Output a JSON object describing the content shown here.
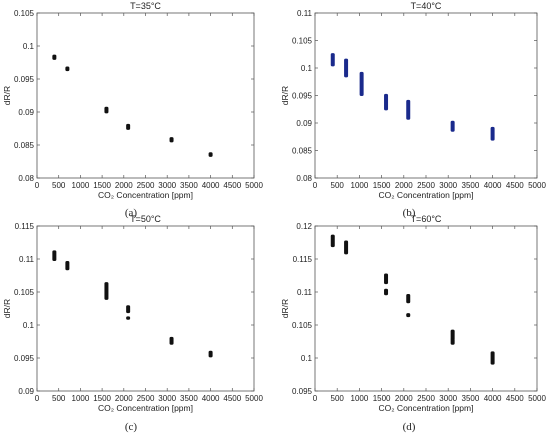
{
  "chart_data": [
    {
      "type": "scatter",
      "title": "T=35°C",
      "panel_label": "(a)",
      "xlabel": "CO₂ Concentration [ppm]",
      "ylabel": "dR/R",
      "xlim": [
        0,
        5000
      ],
      "ylim": [
        0.08,
        0.105
      ],
      "xticks": [
        "0",
        "500",
        "1000",
        "1500",
        "2000",
        "2500",
        "3000",
        "3500",
        "4000",
        "4500",
        "5000"
      ],
      "yticks": [
        "0.08",
        "0.085",
        "0.09",
        "0.095",
        "0.1",
        "0.105"
      ],
      "marker_color": "#111111",
      "series": [
        {
          "x": [
            400,
            700,
            1600,
            2100,
            3100,
            4000
          ],
          "y_high": [
            0.0987,
            0.0969,
            0.0908,
            0.0882,
            0.0862,
            0.0839
          ],
          "y_low": [
            0.0979,
            0.0962,
            0.0898,
            0.0873,
            0.0854,
            0.0832
          ]
        }
      ]
    },
    {
      "type": "scatter",
      "title": "T=40°C",
      "panel_label": "(b)",
      "xlabel": "CO₂ Concentration [ppm]",
      "ylabel": "dR/R",
      "xlim": [
        0,
        5000
      ],
      "ylim": [
        0.08,
        0.11
      ],
      "xticks": [
        "0",
        "500",
        "1000",
        "1500",
        "2000",
        "2500",
        "3000",
        "3500",
        "4000",
        "4500",
        "5000"
      ],
      "yticks": [
        "0.08",
        "0.085",
        "0.09",
        "0.095",
        "0.1",
        "0.105",
        "0.11"
      ],
      "marker_color": "#1a2a8c",
      "series": [
        {
          "x": [
            400,
            700,
            1050,
            1600,
            2100,
            3100,
            4000
          ],
          "y_high": [
            0.1027,
            0.1017,
            0.0993,
            0.0953,
            0.0942,
            0.0904,
            0.0893
          ],
          "y_low": [
            0.1003,
            0.0983,
            0.0949,
            0.0923,
            0.0906,
            0.0884,
            0.0868
          ]
        }
      ]
    },
    {
      "type": "scatter",
      "title": "T=50°C",
      "panel_label": "(c)",
      "xlabel": "CO₂ Concentration [ppm]",
      "ylabel": "dR/R",
      "xlim": [
        0,
        5000
      ],
      "ylim": [
        0.09,
        0.115
      ],
      "xticks": [
        "0",
        "500",
        "1000",
        "1500",
        "2000",
        "2500",
        "3000",
        "3500",
        "4000",
        "4500",
        "5000"
      ],
      "yticks": [
        "0.09",
        "0.095",
        "0.1",
        "0.105",
        "0.11",
        "0.115"
      ],
      "marker_color": "#111111",
      "series": [
        {
          "x": [
            400,
            700,
            1600,
            2100,
            2100,
            3100,
            4000
          ],
          "y_high": [
            0.1113,
            0.1097,
            0.1065,
            0.103,
            0.1013,
            0.0982,
            0.0961
          ],
          "y_low": [
            0.1097,
            0.1083,
            0.1038,
            0.1018,
            0.1008,
            0.097,
            0.0951
          ]
        }
      ]
    },
    {
      "type": "scatter",
      "title": "T=60°C",
      "panel_label": "(d)",
      "xlabel": "CO₂ Concentration [ppm]",
      "ylabel": "dR/R",
      "xlim": [
        0,
        5000
      ],
      "ylim": [
        0.095,
        0.12
      ],
      "xticks": [
        "0",
        "500",
        "1000",
        "1500",
        "2000",
        "2500",
        "3000",
        "3500",
        "4000",
        "4500",
        "5000"
      ],
      "yticks": [
        "0.095",
        "0.1",
        "0.105",
        "0.11",
        "0.115",
        "0.12"
      ],
      "marker_color": "#111111",
      "series": [
        {
          "x": [
            400,
            700,
            1600,
            1600,
            2100,
            2100,
            3100,
            3100,
            4000
          ],
          "y_high": [
            0.1187,
            0.1178,
            0.1128,
            0.1105,
            0.1097,
            0.1068,
            0.1043,
            0.103,
            0.101
          ],
          "y_low": [
            0.1168,
            0.1157,
            0.1112,
            0.1095,
            0.1083,
            0.1062,
            0.1027,
            0.102,
            0.099
          ]
        }
      ]
    }
  ]
}
